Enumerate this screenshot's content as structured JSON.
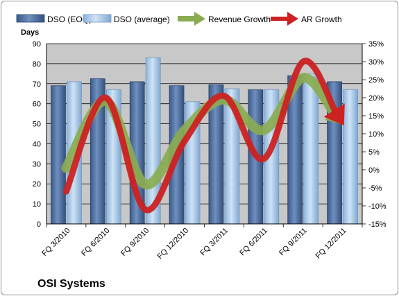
{
  "chart_data": {
    "type": "bar",
    "title": "OSI Systems",
    "ylabel": "Days",
    "categories": [
      "FQ 3/2010",
      "FQ 6/2010",
      "FQ 9/2010",
      "FQ 12/2010",
      "FQ 3/2011",
      "FQ 6/2011",
      "FQ 9/2011",
      "FQ 12/2011"
    ],
    "ylim": [
      0,
      90
    ],
    "y_ticks": [
      0,
      10,
      20,
      30,
      40,
      50,
      60,
      70,
      80,
      90
    ],
    "y2lim": [
      -15,
      35
    ],
    "y2_ticks": [
      "-15%",
      "-10%",
      "-5%",
      "0%",
      "5%",
      "10%",
      "15%",
      "20%",
      "25%",
      "30%",
      "35%"
    ],
    "y2_unit": "%",
    "grid": true,
    "legend_position": "top",
    "series": [
      {
        "name": "DSO (EOQ)",
        "kind": "bar",
        "axis": "left",
        "color": "#4f6f9f",
        "values": [
          69,
          72.5,
          71,
          69,
          69.5,
          67,
          74,
          71
        ]
      },
      {
        "name": "DSO (average)",
        "kind": "bar",
        "axis": "left",
        "color": "#a6c8e8",
        "values": [
          71,
          67,
          83,
          61,
          67.5,
          67,
          75,
          67
        ]
      },
      {
        "name": "Revenue Growth",
        "kind": "line",
        "axis": "right",
        "color": "#8aab50",
        "values": [
          0.5,
          19,
          -4,
          11,
          19.5,
          11,
          25.5,
          13
        ]
      },
      {
        "name": "AR Growth",
        "kind": "line",
        "axis": "right",
        "color": "#cc2222",
        "values": [
          -6,
          20,
          -11,
          8,
          20.5,
          3,
          30,
          13
        ]
      }
    ]
  }
}
